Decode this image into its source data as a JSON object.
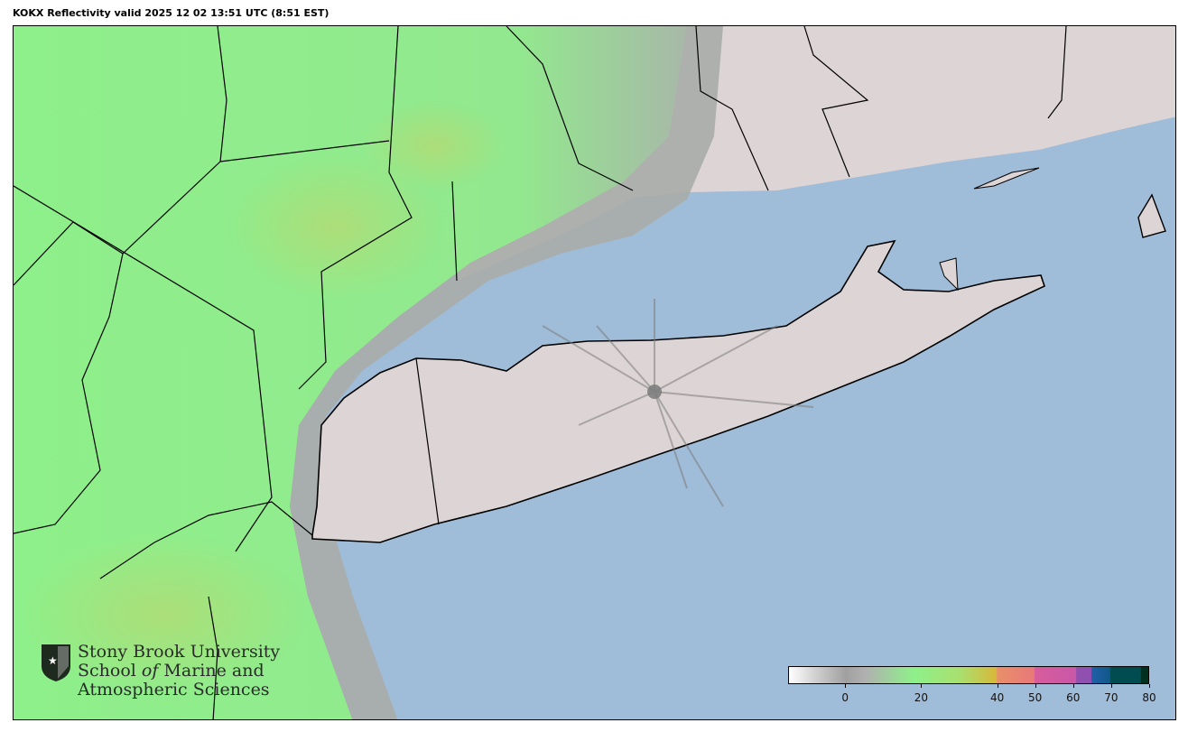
{
  "title": "KOKX Reflectivity valid 2025 12 02 13:51 UTC (8:51 EST)",
  "colorbar": {
    "range": [
      -15,
      80
    ],
    "unit_hint": "dBZ",
    "ticks": [
      "0",
      "20",
      "40",
      "50",
      "60",
      "70",
      "80"
    ],
    "tick_values": [
      0,
      20,
      40,
      50,
      60,
      70,
      80
    ]
  },
  "colors": {
    "water": "#9fbcd8",
    "land": "#ddd5d5",
    "light_echo": "#8ef08a",
    "border": "#000000"
  },
  "logo": {
    "line1": "Stony Brook University",
    "line2a": "School ",
    "line2b": "of",
    "line2c": " Marine and",
    "line3": "Atmospheric Sciences"
  }
}
